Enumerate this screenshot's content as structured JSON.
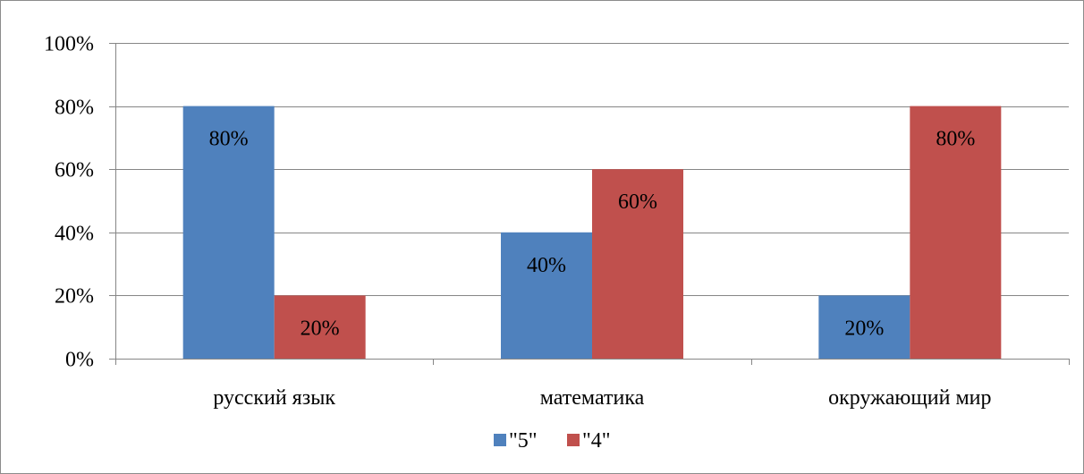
{
  "chart_data": {
    "type": "bar",
    "categories": [
      "русский язык",
      "математика",
      "окружающий мир"
    ],
    "series": [
      {
        "name": "\"5\"",
        "values": [
          80,
          40,
          20
        ],
        "labels": [
          "80%",
          "40%",
          "20%"
        ],
        "color": "#4f81bd"
      },
      {
        "name": "\"4\"",
        "values": [
          20,
          60,
          80
        ],
        "labels": [
          "20%",
          "60%",
          "80%"
        ],
        "color": "#c0504d"
      }
    ],
    "y_ticks": [
      0,
      20,
      40,
      60,
      80,
      100
    ],
    "y_tick_labels": [
      "0%",
      "20%",
      "40%",
      "60%",
      "80%",
      "100%"
    ],
    "ylim": [
      0,
      100
    ],
    "grid": true,
    "legend_position": "bottom",
    "colors": {
      "grid": "#868686",
      "axis": "#868686",
      "frame": "#8c8c8c"
    }
  }
}
